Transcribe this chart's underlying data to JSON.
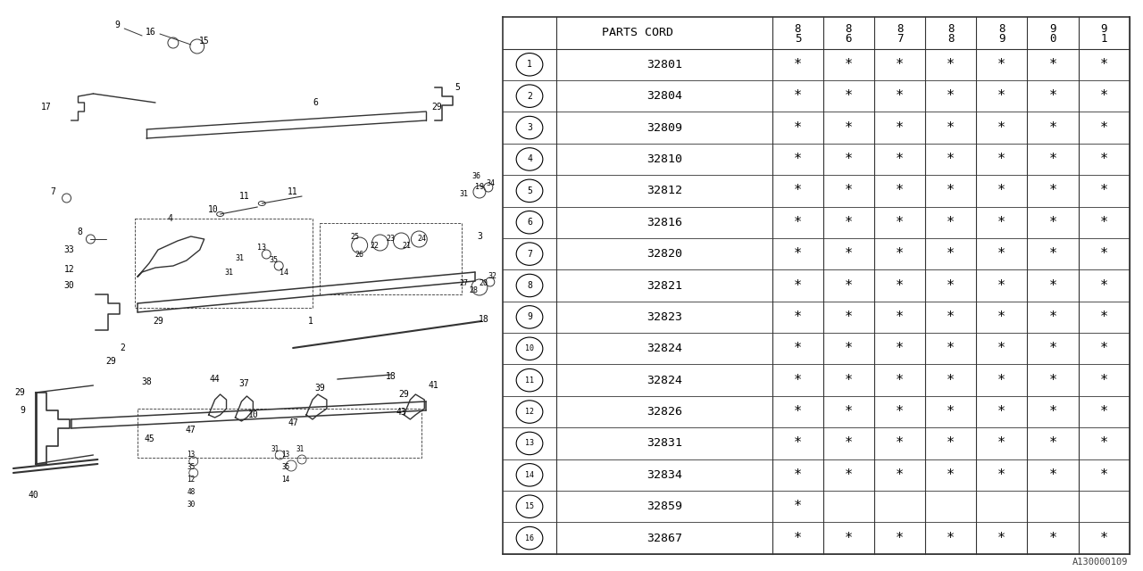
{
  "bg_color": "#ffffff",
  "header_title": "PARTS CORD",
  "col_headers": [
    "8\n5",
    "8\n6",
    "8\n7",
    "8\n8",
    "8\n9",
    "9\n0",
    "9\n1"
  ],
  "rows": [
    {
      "num": "1",
      "code": "32801",
      "marks": [
        1,
        1,
        1,
        1,
        1,
        1,
        1
      ]
    },
    {
      "num": "2",
      "code": "32804",
      "marks": [
        1,
        1,
        1,
        1,
        1,
        1,
        1
      ]
    },
    {
      "num": "3",
      "code": "32809",
      "marks": [
        1,
        1,
        1,
        1,
        1,
        1,
        1
      ]
    },
    {
      "num": "4",
      "code": "32810",
      "marks": [
        1,
        1,
        1,
        1,
        1,
        1,
        1
      ]
    },
    {
      "num": "5",
      "code": "32812",
      "marks": [
        1,
        1,
        1,
        1,
        1,
        1,
        1
      ]
    },
    {
      "num": "6",
      "code": "32816",
      "marks": [
        1,
        1,
        1,
        1,
        1,
        1,
        1
      ]
    },
    {
      "num": "7",
      "code": "32820",
      "marks": [
        1,
        1,
        1,
        1,
        1,
        1,
        1
      ]
    },
    {
      "num": "8",
      "code": "32821",
      "marks": [
        1,
        1,
        1,
        1,
        1,
        1,
        1
      ]
    },
    {
      "num": "9",
      "code": "32823",
      "marks": [
        1,
        1,
        1,
        1,
        1,
        1,
        1
      ]
    },
    {
      "num": "10",
      "code": "32824",
      "marks": [
        1,
        1,
        1,
        1,
        1,
        1,
        1
      ]
    },
    {
      "num": "11",
      "code": "32824",
      "marks": [
        1,
        1,
        1,
        1,
        1,
        1,
        1
      ]
    },
    {
      "num": "12",
      "code": "32826",
      "marks": [
        1,
        1,
        1,
        1,
        1,
        1,
        1
      ]
    },
    {
      "num": "13",
      "code": "32831",
      "marks": [
        1,
        1,
        1,
        1,
        1,
        1,
        1
      ]
    },
    {
      "num": "14",
      "code": "32834",
      "marks": [
        1,
        1,
        1,
        1,
        1,
        1,
        1
      ]
    },
    {
      "num": "15",
      "code": "32859",
      "marks": [
        1,
        0,
        0,
        0,
        0,
        0,
        0
      ]
    },
    {
      "num": "16",
      "code": "32867",
      "marks": [
        1,
        1,
        1,
        1,
        1,
        1,
        1
      ]
    }
  ],
  "watermark": "A130000109",
  "line_color": "#333333",
  "text_color": "#000000"
}
